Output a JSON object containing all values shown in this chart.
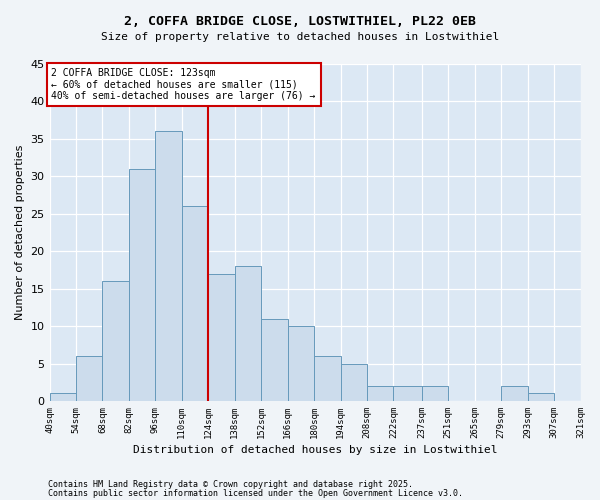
{
  "title1": "2, COFFA BRIDGE CLOSE, LOSTWITHIEL, PL22 0EB",
  "title2": "Size of property relative to detached houses in Lostwithiel",
  "xlabel": "Distribution of detached houses by size in Lostwithiel",
  "ylabel": "Number of detached properties",
  "bar_edges": [
    40,
    54,
    68,
    82,
    96,
    110,
    124,
    138,
    152,
    166,
    180,
    194,
    208,
    222,
    237,
    251,
    265,
    279,
    293,
    307,
    321
  ],
  "bar_values": [
    1,
    6,
    16,
    31,
    36,
    26,
    17,
    18,
    11,
    10,
    6,
    5,
    2,
    2,
    2,
    0,
    0,
    2,
    1,
    0
  ],
  "bar_color": "#ccdcec",
  "bar_edgecolor": "#6699bb",
  "vline_x": 124,
  "vline_color": "#cc0000",
  "annotation_text": "2 COFFA BRIDGE CLOSE: 123sqm\n← 60% of detached houses are smaller (115)\n40% of semi-detached houses are larger (76) →",
  "annotation_box_edgecolor": "#cc0000",
  "annotation_box_facecolor": "#ffffff",
  "ylim": [
    0,
    45
  ],
  "yticks": [
    0,
    5,
    10,
    15,
    20,
    25,
    30,
    35,
    40,
    45
  ],
  "tick_labels": [
    "40sqm",
    "54sqm",
    "68sqm",
    "82sqm",
    "96sqm",
    "110sqm",
    "124sqm",
    "138sqm",
    "152sqm",
    "166sqm",
    "180sqm",
    "194sqm",
    "208sqm",
    "222sqm",
    "237sqm",
    "251sqm",
    "265sqm",
    "279sqm",
    "293sqm",
    "307sqm",
    "321sqm"
  ],
  "footnote1": "Contains HM Land Registry data © Crown copyright and database right 2025.",
  "footnote2": "Contains public sector information licensed under the Open Government Licence v3.0.",
  "fig_facecolor": "#f0f4f8",
  "plot_facecolor": "#dce8f4"
}
